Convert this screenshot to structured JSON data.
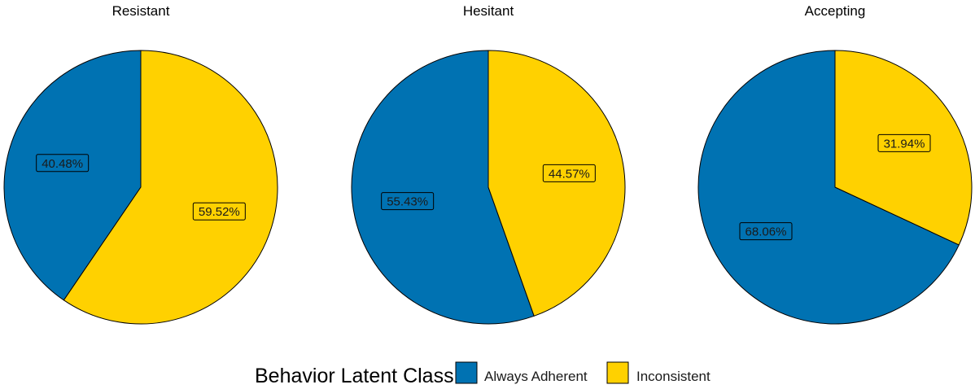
{
  "chart_data": {
    "type": "pie",
    "legend": {
      "title": "Behavior Latent Class",
      "position": "bottom",
      "entries": [
        {
          "label": "Always Adherent",
          "color": "#0072B2"
        },
        {
          "label": "Inconsistent",
          "color": "#FFD100"
        }
      ]
    },
    "categories": [
      "Always Adherent",
      "Inconsistent"
    ],
    "panels": [
      {
        "title": "Resistant",
        "values": [
          40.48,
          59.52
        ],
        "labels": [
          "40.48%",
          "59.52%"
        ]
      },
      {
        "title": "Hesitant",
        "values": [
          55.43,
          44.57
        ],
        "labels": [
          "55.43%",
          "44.57%"
        ]
      },
      {
        "title": "Accepting",
        "values": [
          68.06,
          31.94
        ],
        "labels": [
          "68.06%",
          "31.94%"
        ]
      }
    ]
  }
}
